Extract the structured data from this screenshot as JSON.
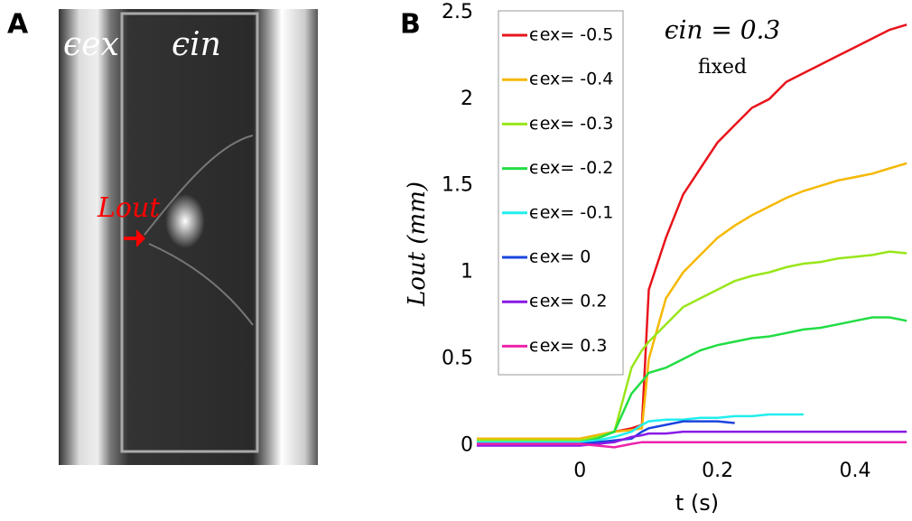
{
  "figure": {
    "panel_a_label": "A",
    "panel_b_label": "B",
    "image_labels": {
      "outer": "ϵex",
      "inner": "ϵin",
      "arrow": "Lout"
    }
  },
  "chart_data": {
    "type": "line",
    "title": "ϵin = 0.3",
    "subtitle": "fixed",
    "x_label": "t (s)",
    "y_label": "Lout (mm)",
    "x": [
      -0.15,
      -0.1,
      -0.05,
      0,
      0.025,
      0.05,
      0.075,
      0.09,
      0.1,
      0.125,
      0.15,
      0.175,
      0.2,
      0.225,
      0.25,
      0.275,
      0.3,
      0.325,
      0.35,
      0.375,
      0.4,
      0.425,
      0.45,
      0.475
    ],
    "xlim": [
      -0.15,
      0.48
    ],
    "xticks": [
      0,
      0.2,
      0.4
    ],
    "ylim": [
      -0.06,
      2.52
    ],
    "yticks": [
      0,
      0.5,
      1,
      1.5,
      2,
      2.5
    ],
    "grid": false,
    "legend": "upper left",
    "series": [
      {
        "name": "ϵex= -0.5",
        "color": "#e8141c",
        "values": [
          0.04,
          0.04,
          0.04,
          0.04,
          0.06,
          0.08,
          0.1,
          0.12,
          0.9,
          1.2,
          1.45,
          1.6,
          1.75,
          1.85,
          1.95,
          2.0,
          2.1,
          2.15,
          2.2,
          2.25,
          2.3,
          2.35,
          2.4,
          2.43
        ]
      },
      {
        "name": "ϵex= -0.4",
        "color": "#f5b800",
        "values": [
          0.04,
          0.04,
          0.04,
          0.04,
          0.06,
          0.08,
          0.09,
          0.1,
          0.5,
          0.85,
          1.0,
          1.1,
          1.2,
          1.27,
          1.33,
          1.38,
          1.43,
          1.47,
          1.5,
          1.53,
          1.55,
          1.57,
          1.6,
          1.63
        ]
      },
      {
        "name": "ϵex= -0.3",
        "color": "#99e619",
        "values": [
          0.03,
          0.03,
          0.03,
          0.03,
          0.05,
          0.08,
          0.45,
          0.55,
          0.6,
          0.7,
          0.8,
          0.85,
          0.9,
          0.95,
          0.98,
          1.0,
          1.03,
          1.05,
          1.06,
          1.08,
          1.09,
          1.1,
          1.12,
          1.11
        ]
      },
      {
        "name": "ϵex= -0.2",
        "color": "#22dd44",
        "values": [
          0.02,
          0.02,
          0.02,
          0.02,
          0.04,
          0.08,
          0.3,
          0.37,
          0.42,
          0.45,
          0.5,
          0.55,
          0.58,
          0.6,
          0.62,
          0.63,
          0.65,
          0.67,
          0.68,
          0.7,
          0.72,
          0.74,
          0.74,
          0.72
        ]
      },
      {
        "name": "ϵex= -0.1",
        "color": "#22eeee",
        "values": [
          0.02,
          0.02,
          0.02,
          0.02,
          0.03,
          0.05,
          0.08,
          0.12,
          0.14,
          0.15,
          0.15,
          0.16,
          0.16,
          0.17,
          0.17,
          0.18,
          0.18,
          0.18,
          null,
          null,
          null,
          null,
          null,
          null
        ]
      },
      {
        "name": "ϵex= 0",
        "color": "#1a44dd",
        "values": [
          0.01,
          0.01,
          0.01,
          0.01,
          0.02,
          0.03,
          0.04,
          0.08,
          0.1,
          0.12,
          0.14,
          0.14,
          0.14,
          0.13,
          null,
          null,
          null,
          null,
          null,
          null,
          null,
          null,
          null,
          null
        ]
      },
      {
        "name": "ϵex= 0.2",
        "color": "#8a1ae6",
        "values": [
          0.0,
          0.0,
          0.0,
          0.0,
          0.01,
          0.02,
          0.05,
          0.06,
          0.07,
          0.07,
          0.08,
          0.08,
          0.08,
          0.08,
          0.08,
          0.08,
          0.08,
          0.08,
          0.08,
          0.08,
          0.08,
          0.08,
          0.08,
          0.08
        ]
      },
      {
        "name": "ϵex= 0.3",
        "color": "#ee22aa",
        "values": [
          0.01,
          0.01,
          0.01,
          0.01,
          0.0,
          -0.01,
          0.01,
          0.02,
          0.02,
          0.02,
          0.02,
          0.02,
          0.02,
          0.02,
          0.02,
          0.02,
          0.02,
          0.02,
          0.02,
          0.02,
          0.02,
          0.02,
          0.02,
          0.02
        ]
      }
    ]
  }
}
